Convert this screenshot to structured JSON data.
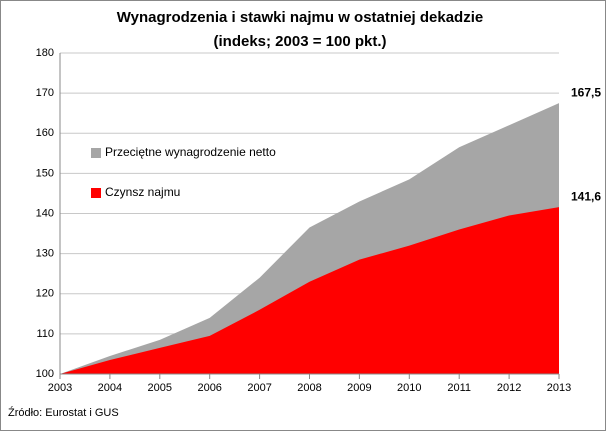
{
  "chart_data": {
    "type": "area",
    "title": "Wynagrodzenia i stawki najmu w ostatniej dekadzie",
    "subtitle": "(indeks; 2003 = 100 pkt.)",
    "source": "Źródło: Eurostat i GUS",
    "x": [
      2003,
      2004,
      2005,
      2006,
      2007,
      2008,
      2009,
      2010,
      2011,
      2012,
      2013
    ],
    "series": [
      {
        "name": "Przeciętne wynagrodzenie netto",
        "color": "#a6a6a6",
        "values": [
          100,
          104.5,
          108.5,
          114,
          124,
          136.5,
          143,
          148.5,
          156.5,
          162,
          167.5
        ],
        "value_labels": [
          null,
          null,
          null,
          null,
          null,
          null,
          null,
          null,
          null,
          null,
          "167,5"
        ]
      },
      {
        "name": "Czynsz najmu",
        "color": "#ff0000",
        "values": [
          100,
          103.5,
          106.5,
          109.5,
          116,
          123,
          128.5,
          132,
          136,
          139.5,
          141.6
        ],
        "value_labels": [
          null,
          null,
          null,
          null,
          null,
          null,
          null,
          null,
          null,
          null,
          "141,6"
        ]
      }
    ],
    "xlim": [
      2003,
      2013
    ],
    "xticks": [
      2003,
      2004,
      2005,
      2006,
      2007,
      2008,
      2009,
      2010,
      2011,
      2012,
      2013
    ],
    "ylim": [
      100,
      180
    ],
    "yticks": [
      100,
      110,
      120,
      130,
      140,
      150,
      160,
      170,
      180
    ],
    "grid": true
  }
}
